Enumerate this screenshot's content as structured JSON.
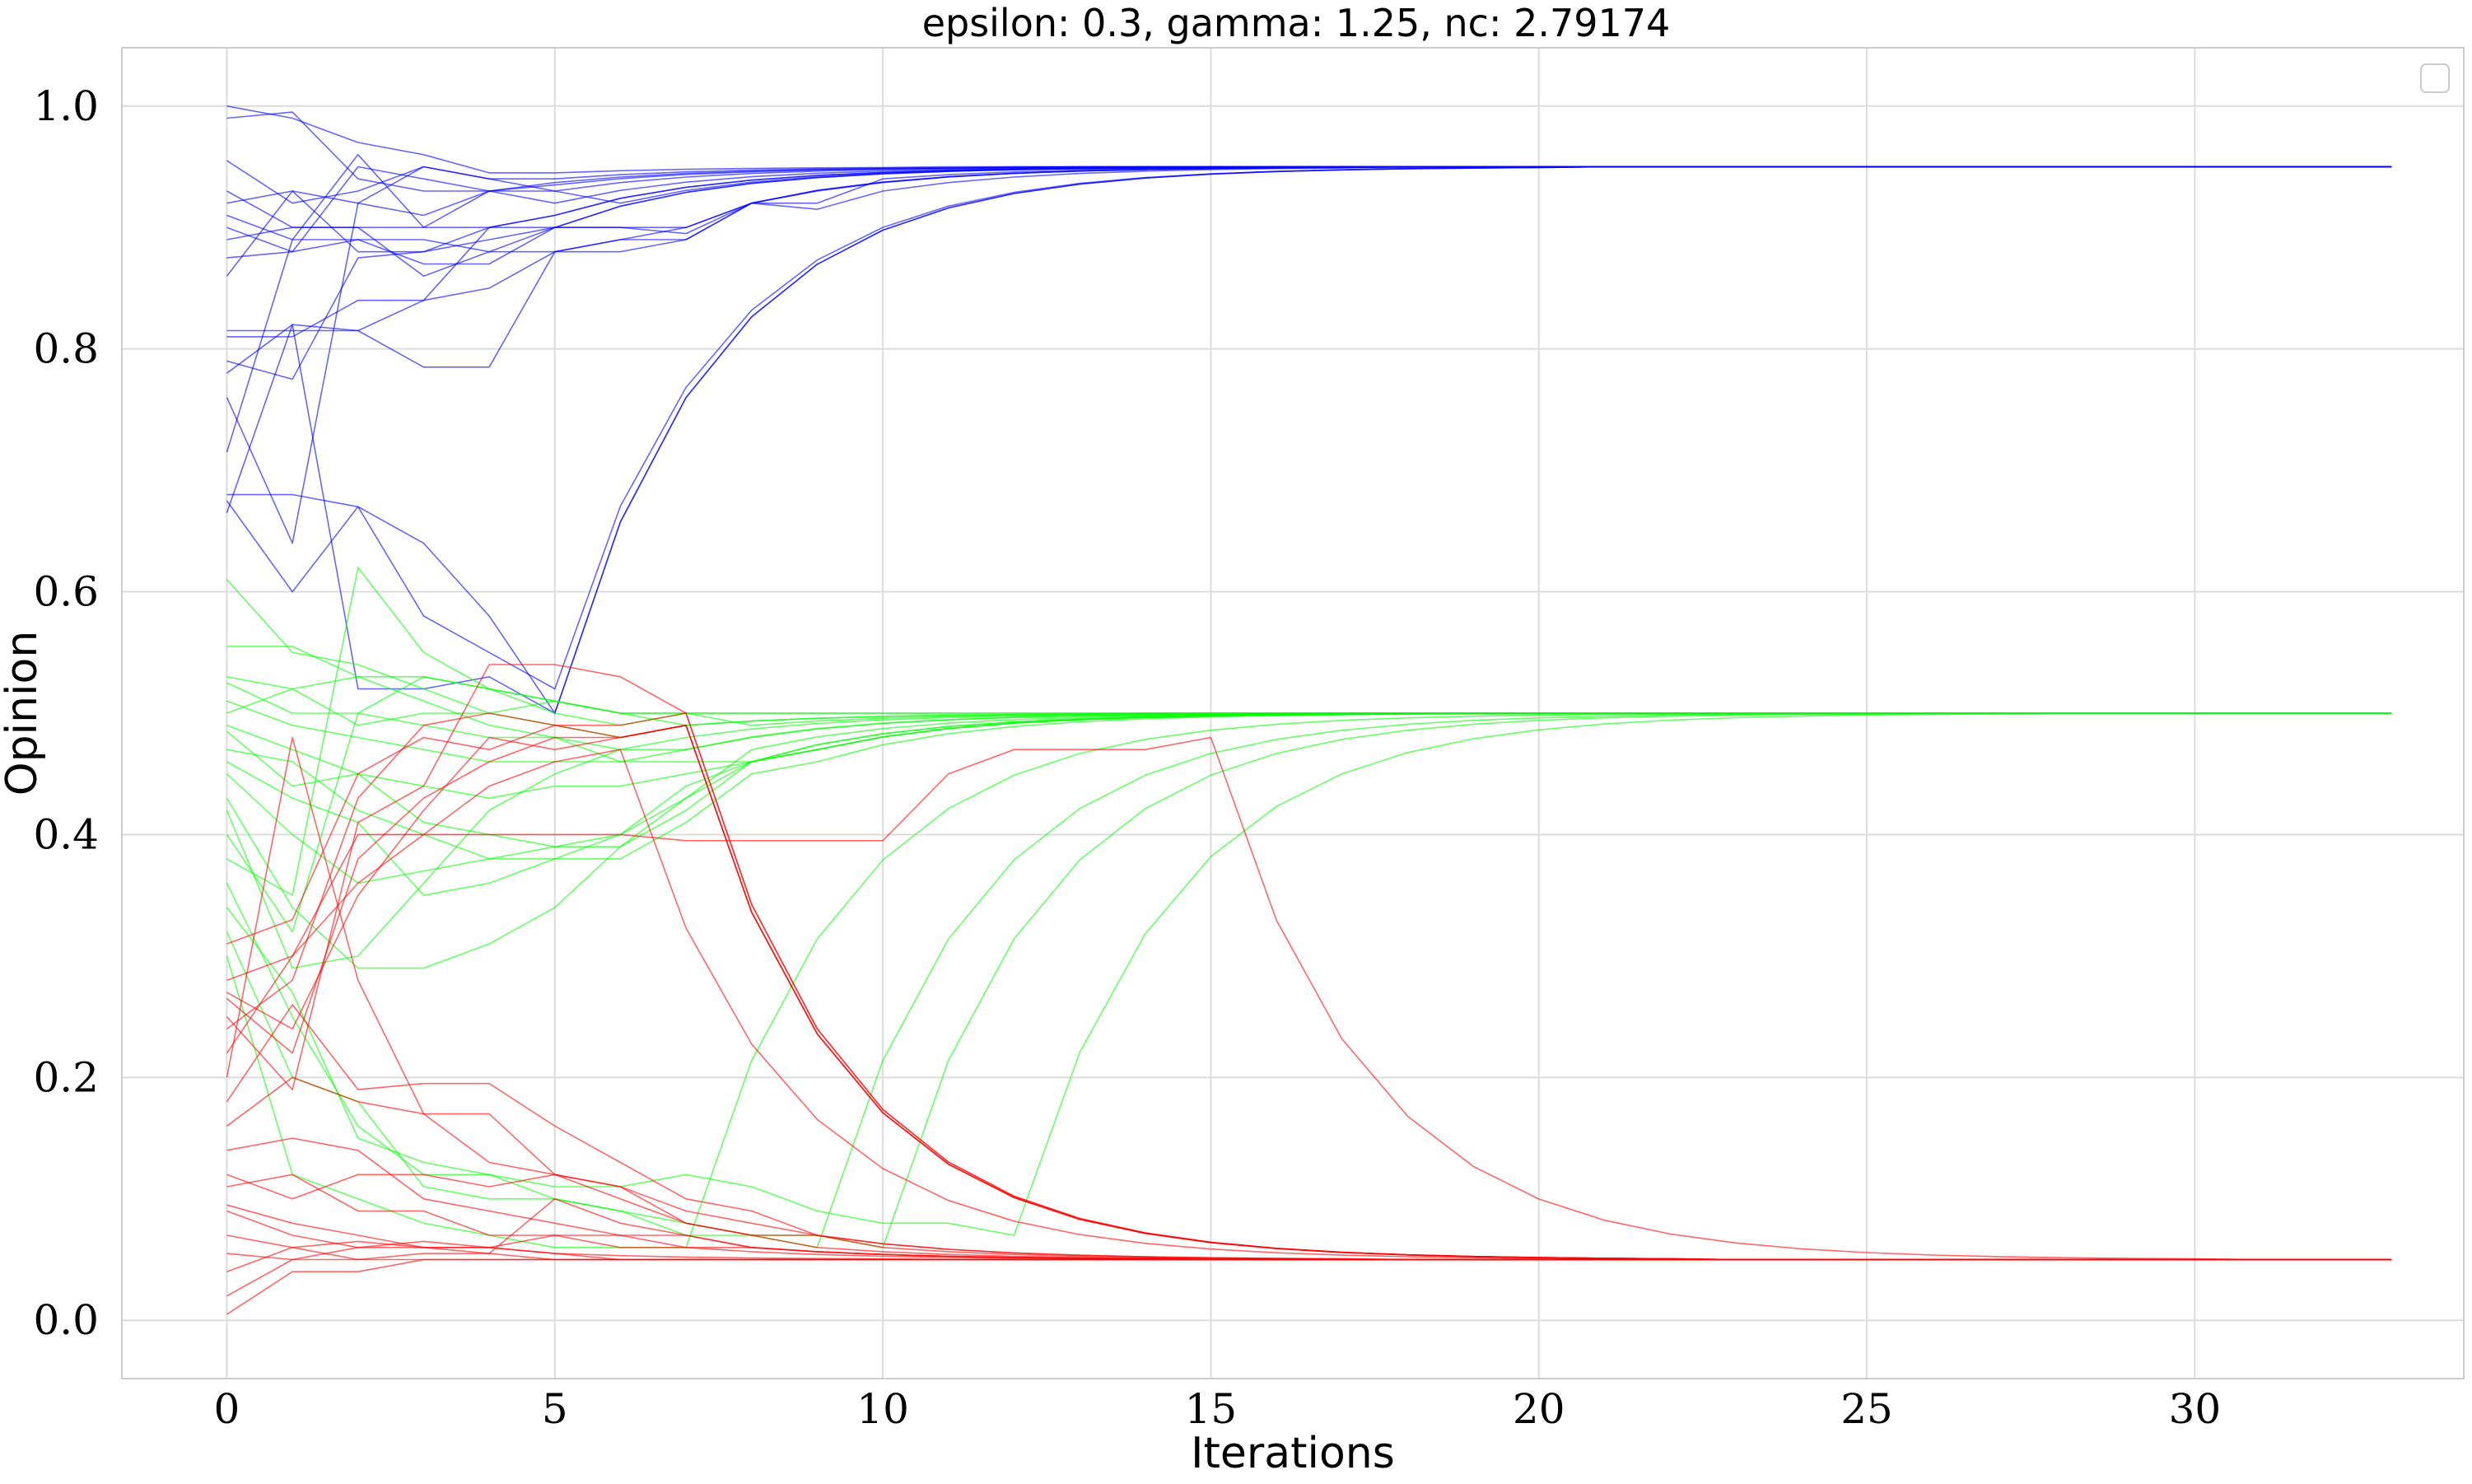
{
  "chart_data": {
    "type": "line",
    "title": "epsilon: 0.3, gamma: 1.25, nc: 2.79174",
    "xlabel": "Iterations",
    "ylabel": "Opinion",
    "xlim": [
      -1.6,
      34.1
    ],
    "ylim": [
      -0.048,
      1.048
    ],
    "xticks": [
      0,
      5,
      10,
      15,
      20,
      25,
      30
    ],
    "yticks": [
      0.0,
      0.2,
      0.4,
      0.6,
      0.8,
      1.0
    ],
    "xtick_labels": [
      "0",
      "5",
      "10",
      "15",
      "20",
      "25",
      "30"
    ],
    "ytick_labels": [
      "0.0",
      "0.2",
      "0.4",
      "0.6",
      "0.8",
      "1.0"
    ],
    "grid": true,
    "legend": "top-right",
    "x": [
      0,
      1,
      2,
      3,
      4,
      5,
      6,
      7,
      8,
      9,
      10,
      11,
      12,
      13,
      14,
      15,
      16,
      17,
      18,
      19,
      20,
      21,
      22,
      23,
      24,
      25,
      26,
      27,
      28,
      29,
      30,
      31,
      32,
      33
    ],
    "groups": [
      {
        "color": "#0000ff",
        "target": 0.95,
        "series": [
          {
            "values": [
              1.0,
              0.99,
              0.97,
              0.96,
              0.945,
              0.945
            ]
          },
          {
            "values": [
              0.99,
              0.995,
              0.94,
              0.93,
              0.93,
              0.935
            ]
          },
          {
            "values": [
              0.955,
              0.92,
              0.93,
              0.95,
              0.94,
              0.93,
              0.92
            ]
          },
          {
            "values": [
              0.93,
              0.9,
              0.9,
              0.9,
              0.9,
              0.9,
              0.9,
              0.9,
              0.92,
              0.93
            ]
          },
          {
            "values": [
              0.92,
              0.93,
              0.92,
              0.95,
              0.94,
              0.94
            ]
          },
          {
            "values": [
              0.91,
              0.89,
              0.89,
              0.89,
              0.88,
              0.88,
              0.89,
              0.89,
              0.92,
              0.92,
              0.94
            ]
          },
          {
            "values": [
              0.9,
              0.88,
              0.95,
              0.94,
              0.93,
              0.92
            ]
          },
          {
            "values": [
              0.89,
              0.9,
              0.9,
              0.86,
              0.88,
              0.9
            ]
          },
          {
            "values": [
              0.875,
              0.88,
              0.89,
              0.87,
              0.87,
              0.9,
              0.9,
              0.895,
              0.92,
              0.915,
              0.93
            ]
          },
          {
            "values": [
              0.86,
              0.93,
              0.88,
              0.88,
              0.89,
              0.9
            ]
          },
          {
            "values": [
              0.815,
              0.815,
              0.815,
              0.84,
              0.85,
              0.88,
              0.88,
              0.89,
              0.92
            ]
          },
          {
            "values": [
              0.81,
              0.81,
              0.84,
              0.84,
              0.9,
              0.91
            ]
          },
          {
            "values": [
              0.79,
              0.775,
              0.875,
              0.88,
              0.9,
              0.91
            ]
          },
          {
            "values": [
              0.78,
              0.82,
              0.815,
              0.785,
              0.785,
              0.88,
              0.89,
              0.9,
              0.92
            ]
          },
          {
            "values": [
              0.76,
              0.64,
              0.92,
              0.91,
              0.93,
              0.93
            ]
          },
          {
            "values": [
              0.715,
              0.89,
              0.96,
              0.9,
              0.93
            ]
          },
          {
            "values": [
              0.68,
              0.68,
              0.67,
              0.64,
              0.58,
              0.5
            ]
          },
          {
            "values": [
              0.675,
              0.6,
              0.67,
              0.58,
              0.55,
              0.52
            ]
          },
          {
            "values": [
              0.665,
              0.82,
              0.52,
              0.52,
              0.53,
              0.5
            ]
          }
        ]
      },
      {
        "color": "#00ff00",
        "target": 0.5,
        "series": [
          {
            "values": [
              0.61,
              0.55,
              0.54,
              0.52,
              0.5,
              0.49,
              0.48,
              0.49
            ]
          },
          {
            "values": [
              0.555,
              0.555,
              0.53,
              0.51,
              0.49,
              0.48,
              0.46,
              0.47
            ]
          },
          {
            "values": [
              0.53,
              0.52,
              0.49,
              0.5,
              0.5,
              0.51,
              0.5,
              0.49
            ]
          },
          {
            "values": [
              0.525,
              0.5,
              0.5,
              0.49,
              0.48,
              0.48,
              0.47,
              0.47,
              0.48
            ]
          },
          {
            "values": [
              0.51,
              0.49,
              0.48,
              0.47,
              0.46,
              0.46,
              0.46,
              0.46,
              0.46,
              0.47
            ]
          },
          {
            "values": [
              0.5,
              0.52,
              0.53,
              0.53,
              0.52,
              0.51,
              0.5,
              0.5,
              0.49
            ]
          },
          {
            "values": [
              0.49,
              0.47,
              0.45,
              0.44,
              0.43,
              0.44,
              0.44,
              0.45,
              0.46,
              0.47
            ]
          },
          {
            "values": [
              0.485,
              0.44,
              0.45,
              0.41,
              0.4,
              0.39,
              0.39,
              0.42,
              0.46,
              0.47
            ]
          },
          {
            "values": [
              0.47,
              0.46,
              0.42,
              0.4,
              0.38,
              0.38,
              0.38,
              0.41,
              0.45,
              0.46
            ]
          },
          {
            "values": [
              0.46,
              0.43,
              0.41,
              0.35,
              0.36,
              0.38,
              0.4,
              0.43,
              0.47
            ]
          },
          {
            "values": [
              0.45,
              0.4,
              0.36,
              0.37,
              0.38,
              0.39,
              0.4,
              0.44,
              0.46
            ]
          },
          {
            "values": [
              0.43,
              0.34,
              0.29,
              0.29,
              0.31,
              0.34,
              0.39,
              0.43,
              0.46
            ]
          },
          {
            "values": [
              0.42,
              0.29,
              0.3,
              0.36,
              0.42,
              0.45,
              0.47,
              0.48
            ]
          },
          {
            "values": [
              0.4,
              0.32,
              0.5,
              0.53,
              0.52,
              0.5,
              0.49,
              0.5
            ]
          },
          {
            "values": [
              0.38,
              0.35,
              0.62,
              0.55,
              0.52,
              0.51,
              0.5
            ]
          },
          {
            "values": [
              0.36,
              0.25,
              0.16,
              0.12,
              0.12,
              0.11,
              0.11,
              0.12,
              0.11,
              0.09,
              0.08,
              0.08,
              0.07
            ]
          },
          {
            "values": [
              0.34,
              0.27,
              0.15,
              0.13,
              0.12,
              0.1,
              0.09,
              0.08,
              0.07,
              0.07,
              0.06
            ]
          },
          {
            "values": [
              0.32,
              0.2,
              0.18,
              0.11,
              0.1,
              0.1,
              0.09,
              0.07,
              0.07,
              0.06
            ]
          },
          {
            "values": [
              0.3,
              0.12,
              0.1,
              0.08,
              0.07,
              0.06,
              0.06,
              0.06
            ]
          }
        ]
      },
      {
        "color": "#ff0000",
        "target": 0.05,
        "series": [
          {
            "values": [
              0.31,
              0.33,
              0.45,
              0.48,
              0.47,
              0.49,
              0.49,
              0.5
            ]
          },
          {
            "values": [
              0.28,
              0.3,
              0.4,
              0.4,
              0.4,
              0.4,
              0.4,
              0.395,
              0.395,
              0.395,
              0.395,
              0.45,
              0.47,
              0.47,
              0.47,
              0.48
            ]
          },
          {
            "values": [
              0.27,
              0.24,
              0.35,
              0.42,
              0.48,
              0.47,
              0.48,
              0.49
            ]
          },
          {
            "values": [
              0.265,
              0.22,
              0.38,
              0.43,
              0.46,
              0.48,
              0.48,
              0.49
            ]
          },
          {
            "values": [
              0.25,
              0.19,
              0.41,
              0.44,
              0.54,
              0.54,
              0.53,
              0.5
            ]
          },
          {
            "values": [
              0.24,
              0.28,
              0.43,
              0.49,
              0.5,
              0.49,
              0.48,
              0.49
            ]
          },
          {
            "values": [
              0.22,
              0.3,
              0.36,
              0.4,
              0.44,
              0.46,
              0.47
            ]
          },
          {
            "values": [
              0.2,
              0.48,
              0.28,
              0.17,
              0.13,
              0.12,
              0.11,
              0.09,
              0.08,
              0.07
            ]
          },
          {
            "values": [
              0.18,
              0.26,
              0.19,
              0.195,
              0.195,
              0.16,
              0.13,
              0.1,
              0.09,
              0.07
            ]
          },
          {
            "values": [
              0.16,
              0.2,
              0.18,
              0.17,
              0.17,
              0.12,
              0.11,
              0.08,
              0.07,
              0.07,
              0.06
            ]
          },
          {
            "values": [
              0.14,
              0.15,
              0.14,
              0.1,
              0.09,
              0.08,
              0.07,
              0.07,
              0.06
            ]
          },
          {
            "values": [
              0.12,
              0.1,
              0.12,
              0.12,
              0.11,
              0.12,
              0.1,
              0.08,
              0.07,
              0.06
            ]
          },
          {
            "values": [
              0.11,
              0.12,
              0.09,
              0.09,
              0.07,
              0.07,
              0.06,
              0.06
            ]
          },
          {
            "values": [
              0.095,
              0.08,
              0.07,
              0.06,
              0.06,
              0.07,
              0.07,
              0.06,
              0.06
            ]
          },
          {
            "values": [
              0.09,
              0.07,
              0.06,
              0.06,
              0.055,
              0.1,
              0.08,
              0.07,
              0.06
            ]
          },
          {
            "values": [
              0.07,
              0.06,
              0.05,
              0.05,
              0.05,
              0.05,
              0.05
            ]
          },
          {
            "values": [
              0.055,
              0.05,
              0.05,
              0.055,
              0.055,
              0.05,
              0.05
            ]
          },
          {
            "values": [
              0.04,
              0.06,
              0.065,
              0.06,
              0.06,
              0.055,
              0.05
            ]
          },
          {
            "values": [
              0.02,
              0.05,
              0.06,
              0.065,
              0.06,
              0.055
            ]
          },
          {
            "values": [
              0.005,
              0.04,
              0.04,
              0.05,
              0.05,
              0.05
            ]
          }
        ]
      }
    ]
  }
}
